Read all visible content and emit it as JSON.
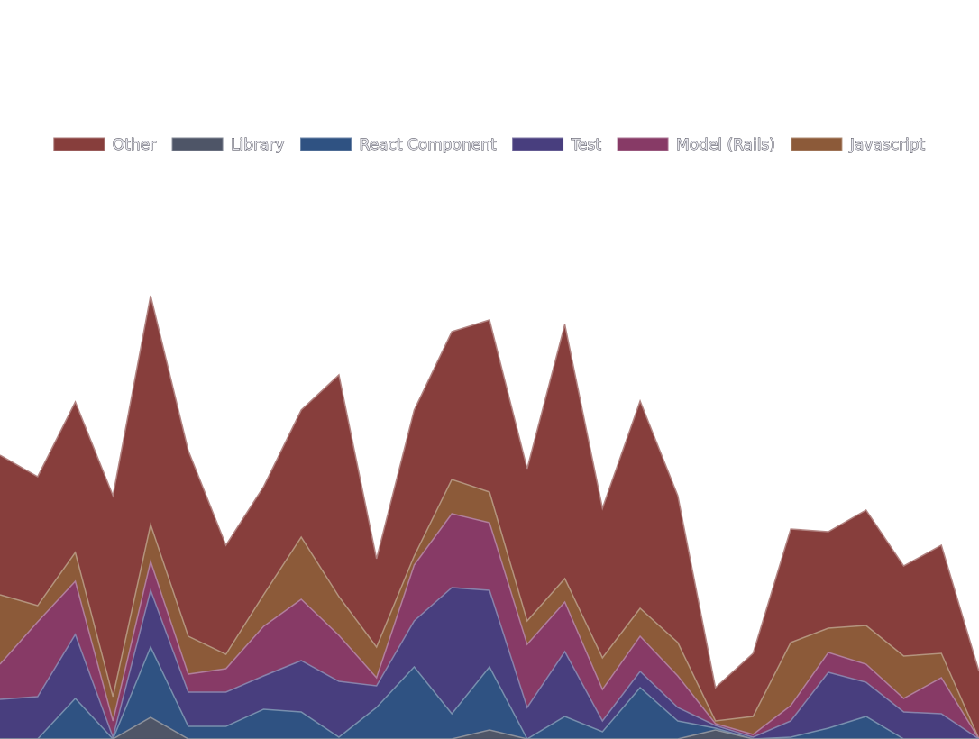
{
  "chart_data": {
    "type": "stacked_area",
    "categories": [
      null,
      null,
      null,
      null,
      null,
      null,
      null,
      null,
      null,
      null,
      null,
      null,
      null,
      null,
      null,
      null,
      null,
      null,
      null,
      null,
      null,
      null,
      null,
      null,
      null,
      null,
      null
    ],
    "ylim": [
      0,
      500
    ],
    "series": [
      {
        "name": "Other",
        "color": "#873e3c",
        "values": [
          155,
          143,
          167,
          223,
          254,
          206,
          121,
          120,
          141,
          246,
          98,
          162,
          164,
          191,
          169,
          282,
          166,
          230,
          163,
          37,
          70,
          126,
          107,
          128,
          100,
          120,
          75
        ]
      },
      {
        "name": "Library",
        "color": "#4e5567",
        "values": [
          0,
          0,
          0,
          0,
          24,
          0,
          0,
          0,
          0,
          0,
          0,
          0,
          0,
          10,
          0,
          0,
          0,
          0,
          0,
          10,
          0,
          0,
          0,
          0,
          0,
          0,
          0
        ]
      },
      {
        "name": "React Component",
        "color": "#2f5282",
        "values": [
          0,
          0,
          45,
          0,
          78,
          14,
          14,
          33,
          30,
          2,
          35,
          80,
          28,
          70,
          0,
          25,
          8,
          57,
          20,
          2,
          0,
          2,
          12,
          25,
          0,
          0,
          0
        ]
      },
      {
        "name": "Test",
        "color": "#483e7e",
        "values": [
          44,
          47,
          71,
          2,
          63,
          38,
          38,
          37,
          57,
          62,
          24,
          51,
          140,
          85,
          35,
          72,
          12,
          18,
          15,
          3,
          2,
          18,
          62,
          38,
          30,
          28,
          0
        ]
      },
      {
        "name": "Model (Rails)",
        "color": "#873a66",
        "values": [
          39,
          83,
          59,
          18,
          32,
          20,
          26,
          55,
          68,
          51,
          9,
          62,
          82,
          75,
          70,
          55,
          35,
          39,
          35,
          2,
          3,
          17,
          22,
          20,
          15,
          40,
          0
        ]
      },
      {
        "name": "Javascript",
        "color": "#8c5a39",
        "values": [
          77,
          18,
          32,
          27,
          41,
          42,
          16,
          35,
          69,
          43,
          34,
          10,
          38,
          34,
          26,
          26,
          35,
          31,
          37,
          3,
          20,
          70,
          27,
          43,
          47,
          27,
          0
        ]
      }
    ],
    "stack_order": [
      "Library",
      "React Component",
      "Test",
      "Model (Rails)",
      "Javascript",
      "Other"
    ]
  }
}
